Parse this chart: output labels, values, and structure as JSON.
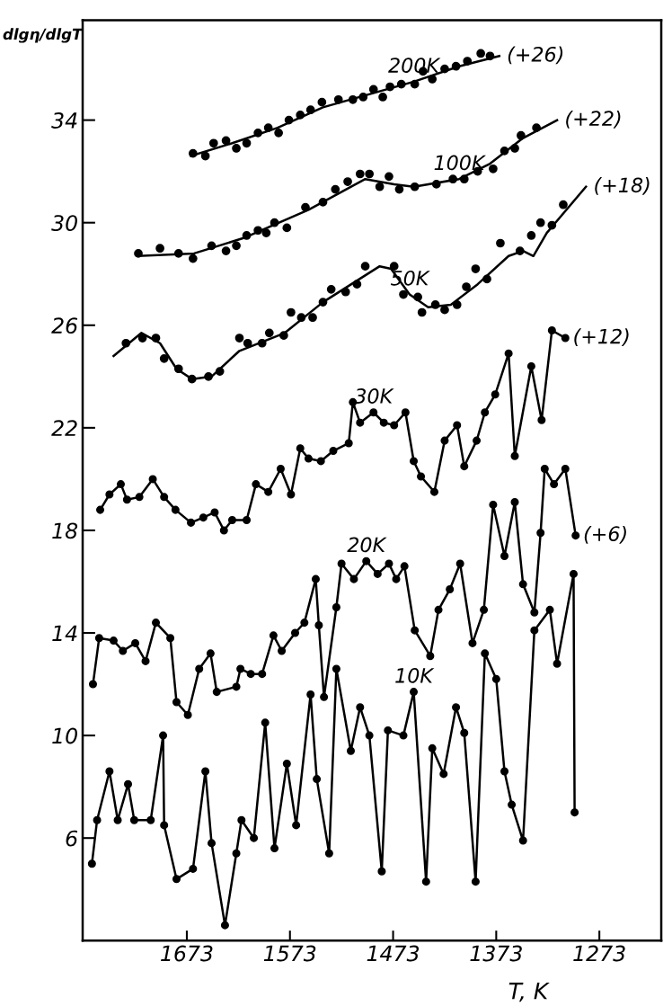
{
  "chart_data": {
    "type": "line",
    "xlabel": "T, K",
    "ylabel": "dlgη/dlgT",
    "xlim": [
      1774,
      1213
    ],
    "xticks": [
      1673,
      1573,
      1473,
      1373,
      1273
    ],
    "ylim": [
      2,
      37.9
    ],
    "yticks": [
      6,
      10,
      14,
      18,
      22,
      26,
      30,
      34
    ],
    "grid": false,
    "legend": false,
    "series": [
      {
        "type": "scatter",
        "color": "#000000",
        "marker": "circle",
        "x": [
          1667,
          1655,
          1647,
          1635,
          1625,
          1615,
          1604,
          1594,
          1584,
          1574,
          1563,
          1553,
          1542,
          1526,
          1512,
          1502,
          1492,
          1483,
          1476,
          1465,
          1452,
          1444,
          1435,
          1423,
          1412,
          1401,
          1388,
          1379
        ],
        "values": [
          32.7,
          32.6,
          33.1,
          33.2,
          32.9,
          33.1,
          33.5,
          33.7,
          33.5,
          34.0,
          34.2,
          34.4,
          34.7,
          34.8,
          34.8,
          34.9,
          35.2,
          34.9,
          35.3,
          35.4,
          35.4,
          35.9,
          35.6,
          36.0,
          36.1,
          36.3,
          36.6,
          36.5
        ]
      },
      {
        "name": "200K",
        "color": "#000000",
        "marker": "none",
        "x": [
          1669,
          1629,
          1585,
          1541,
          1497,
          1453,
          1409,
          1370
        ],
        "values": [
          32.6,
          33.1,
          33.7,
          34.5,
          35.0,
          35.5,
          36.1,
          36.5
        ]
      },
      {
        "type": "scatter",
        "color": "#000000",
        "marker": "circle",
        "x": [
          1720,
          1699,
          1681,
          1667,
          1649,
          1635,
          1625,
          1615,
          1604,
          1596,
          1588,
          1576,
          1558,
          1541,
          1529,
          1517,
          1505,
          1496,
          1486,
          1477,
          1467,
          1452,
          1431,
          1415,
          1404,
          1391,
          1376,
          1365,
          1355,
          1349,
          1334
        ],
        "values": [
          28.8,
          29.0,
          28.8,
          28.6,
          29.1,
          28.9,
          29.1,
          29.5,
          29.7,
          29.6,
          30.0,
          29.8,
          30.6,
          30.8,
          31.3,
          31.6,
          31.9,
          31.9,
          31.4,
          31.8,
          31.3,
          31.4,
          31.5,
          31.7,
          31.7,
          32.0,
          32.1,
          32.8,
          32.9,
          33.4,
          33.7
        ]
      },
      {
        "name": "100K",
        "color": "#000000",
        "marker": "none",
        "x": [
          1720,
          1666,
          1618,
          1555,
          1500,
          1472,
          1453,
          1409,
          1379,
          1347,
          1314
        ],
        "values": [
          28.7,
          28.8,
          29.4,
          30.5,
          31.7,
          31.5,
          31.4,
          31.7,
          32.3,
          33.3,
          34.0
        ]
      },
      {
        "type": "scatter",
        "color": "#000000",
        "marker": "circle",
        "x": [
          1732,
          1716,
          1703,
          1695,
          1681,
          1668,
          1652,
          1641,
          1622,
          1614,
          1600,
          1593,
          1579,
          1572,
          1562,
          1551,
          1541,
          1533,
          1519,
          1508,
          1500,
          1472,
          1463,
          1449,
          1445,
          1432,
          1423,
          1411,
          1402,
          1393,
          1382,
          1369,
          1350,
          1339,
          1330,
          1319,
          1308
        ],
        "values": [
          25.3,
          25.5,
          25.5,
          24.7,
          24.3,
          23.9,
          24.0,
          24.2,
          25.5,
          25.3,
          25.3,
          25.7,
          25.6,
          26.5,
          26.3,
          26.3,
          26.9,
          27.4,
          27.3,
          27.6,
          28.3,
          28.3,
          27.2,
          27.1,
          26.5,
          26.8,
          26.6,
          26.8,
          27.5,
          28.2,
          27.8,
          29.2,
          28.9,
          29.5,
          30.0,
          29.9,
          30.7
        ]
      },
      {
        "name": "50K",
        "color": "#000000",
        "marker": "none",
        "x": [
          1744,
          1717,
          1699,
          1683,
          1668,
          1649,
          1622,
          1578,
          1541,
          1486,
          1475,
          1457,
          1439,
          1417,
          1391,
          1361,
          1347,
          1337,
          1324,
          1286
        ],
        "values": [
          24.8,
          25.7,
          25.3,
          24.3,
          23.9,
          24.0,
          25.0,
          25.7,
          26.9,
          28.3,
          28.2,
          27.2,
          26.7,
          26.8,
          27.6,
          28.7,
          28.9,
          28.7,
          29.6,
          31.4
        ]
      },
      {
        "name": "30K",
        "color": "#000000",
        "marker": "circle",
        "x": [
          1757,
          1748,
          1737,
          1731,
          1719,
          1706,
          1695,
          1684,
          1669,
          1657,
          1646,
          1637,
          1629,
          1615,
          1606,
          1594,
          1582,
          1572,
          1563,
          1555,
          1543,
          1531,
          1516,
          1512,
          1505,
          1492,
          1482,
          1472,
          1461,
          1453,
          1446,
          1433,
          1423,
          1411,
          1404,
          1392,
          1384,
          1374,
          1361,
          1355,
          1339,
          1329,
          1319,
          1306
        ],
        "values": [
          18.8,
          19.4,
          19.8,
          19.2,
          19.3,
          20.0,
          19.3,
          18.8,
          18.3,
          18.5,
          18.7,
          18.0,
          18.4,
          18.4,
          19.8,
          19.5,
          20.4,
          19.4,
          21.2,
          20.8,
          20.7,
          21.1,
          21.4,
          23.0,
          22.2,
          22.6,
          22.2,
          22.1,
          22.6,
          20.7,
          20.1,
          19.5,
          21.5,
          22.1,
          20.5,
          21.5,
          22.6,
          23.3,
          24.9,
          20.9,
          24.4,
          22.3,
          25.8,
          25.5
        ]
      },
      {
        "name": "20K",
        "color": "#000000",
        "marker": "circle",
        "x": [
          1764,
          1758,
          1744,
          1735,
          1723,
          1713,
          1703,
          1689,
          1683,
          1672,
          1661,
          1650,
          1644,
          1625,
          1621,
          1611,
          1600,
          1589,
          1581,
          1568,
          1559,
          1548,
          1545,
          1540,
          1528,
          1523,
          1511,
          1499,
          1488,
          1477,
          1470,
          1462,
          1452,
          1437,
          1429,
          1418,
          1408,
          1396,
          1385,
          1376,
          1365,
          1355,
          1347,
          1336,
          1330,
          1326,
          1317,
          1306,
          1296
        ],
        "values": [
          12.0,
          13.8,
          13.7,
          13.3,
          13.6,
          12.9,
          14.4,
          13.8,
          11.3,
          10.8,
          12.6,
          13.2,
          11.7,
          11.9,
          12.6,
          12.4,
          12.4,
          13.9,
          13.3,
          14.0,
          14.4,
          16.1,
          14.3,
          11.5,
          15.0,
          16.7,
          16.1,
          16.8,
          16.3,
          16.7,
          16.1,
          16.6,
          14.1,
          13.1,
          14.9,
          15.7,
          16.7,
          13.6,
          14.9,
          19.0,
          17.0,
          19.1,
          15.9,
          14.8,
          17.9,
          20.4,
          19.8,
          20.4,
          17.8
        ]
      },
      {
        "name": "10K",
        "color": "#000000",
        "marker": "circle",
        "x": [
          1765,
          1760,
          1748,
          1740,
          1730,
          1724,
          1708,
          1696,
          1695,
          1683,
          1667,
          1655,
          1649,
          1636,
          1625,
          1620,
          1608,
          1597,
          1588,
          1576,
          1567,
          1553,
          1547,
          1535,
          1528,
          1514,
          1505,
          1496,
          1484,
          1478,
          1463,
          1453,
          1441,
          1435,
          1424,
          1412,
          1404,
          1393,
          1384,
          1373,
          1365,
          1358,
          1347,
          1336,
          1321,
          1314,
          1298,
          1297
        ],
        "values": [
          5.0,
          6.7,
          8.6,
          6.7,
          8.1,
          6.7,
          6.7,
          10.0,
          6.5,
          4.4,
          4.8,
          8.6,
          5.8,
          2.6,
          5.4,
          6.7,
          6.0,
          10.5,
          5.6,
          8.9,
          6.5,
          11.6,
          8.3,
          5.4,
          12.6,
          9.4,
          11.1,
          10.0,
          4.7,
          10.2,
          10.0,
          11.7,
          4.3,
          9.5,
          8.5,
          11.1,
          10.1,
          4.3,
          13.2,
          12.2,
          8.6,
          7.3,
          5.9,
          14.1,
          14.9,
          12.8,
          16.3,
          7.0
        ]
      }
    ],
    "annotations": [
      {
        "text": "(+26)",
        "x": 1370,
        "y": 36.5
      },
      {
        "text": "(+22)",
        "x": 1314,
        "y": 34.0
      },
      {
        "text": "(+18)",
        "x": 1286,
        "y": 31.4
      },
      {
        "text": "(+12)",
        "x": 1306,
        "y": 25.5
      },
      {
        "text": "(+6)",
        "x": 1296,
        "y": 17.8
      }
    ]
  }
}
